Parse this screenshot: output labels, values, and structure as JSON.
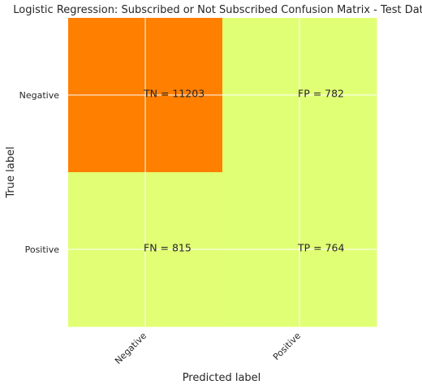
{
  "chart_data": {
    "type": "heatmap",
    "title": "Logistic Regression: Subscribed or Not Subscribed Confusion Matrix - Test Data",
    "xlabel": "Predicted label",
    "ylabel": "True label",
    "x_categories": [
      "Negative",
      "Positive"
    ],
    "y_categories": [
      "Negative",
      "Positive"
    ],
    "matrix": [
      [
        11203,
        782
      ],
      [
        815,
        764
      ]
    ],
    "cell_labels": [
      [
        "TN = 11203",
        "FP = 782"
      ],
      [
        "FN = 815",
        "TP = 764"
      ]
    ],
    "colors": {
      "high": "#ff7f00",
      "low": "#e1ff75",
      "grid": "#ffffff"
    },
    "grid": true,
    "colormap": "Wistia"
  }
}
